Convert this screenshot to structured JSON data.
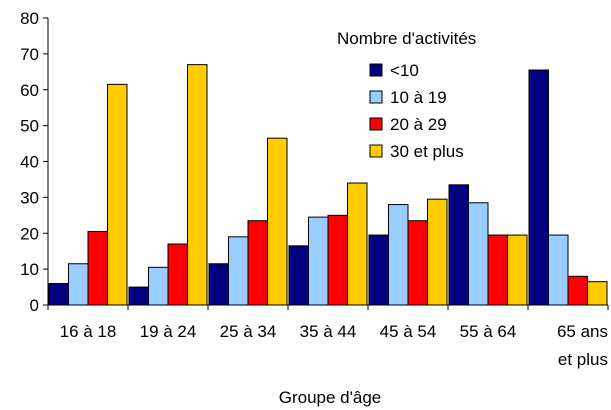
{
  "chart_data": {
    "type": "bar",
    "categories": [
      [
        "16 à 18"
      ],
      [
        "19 à 24"
      ],
      [
        "25 à 34"
      ],
      [
        "35 à 44"
      ],
      [
        "45 à 54"
      ],
      [
        "55 à 64"
      ],
      [
        "65 ans",
        "et plus"
      ]
    ],
    "series": [
      {
        "name": "<10",
        "color": "#000080",
        "values": [
          6,
          5,
          11.5,
          16.5,
          19.5,
          33.5,
          65.5
        ]
      },
      {
        "name": "10 à 19",
        "color": "#99ccff",
        "values": [
          11.5,
          10.5,
          19,
          24.5,
          28,
          28.5,
          19.5
        ]
      },
      {
        "name": "20 à 29",
        "color": "#ff0000",
        "values": [
          20.5,
          17,
          23.5,
          25,
          23.5,
          19.5,
          8
        ]
      },
      {
        "name": "30 et plus",
        "color": "#ffcc00",
        "values": [
          61.5,
          67,
          46.5,
          34,
          29.5,
          19.5,
          6.5
        ]
      }
    ],
    "legend_title": "Nombre d'activités",
    "legend_position": "top-right",
    "xlabel": "Groupe d'âge",
    "ylabel": "",
    "ylim": [
      0,
      80
    ],
    "yticks": [
      0,
      10,
      20,
      30,
      40,
      50,
      60,
      70,
      80
    ],
    "grid": false
  }
}
